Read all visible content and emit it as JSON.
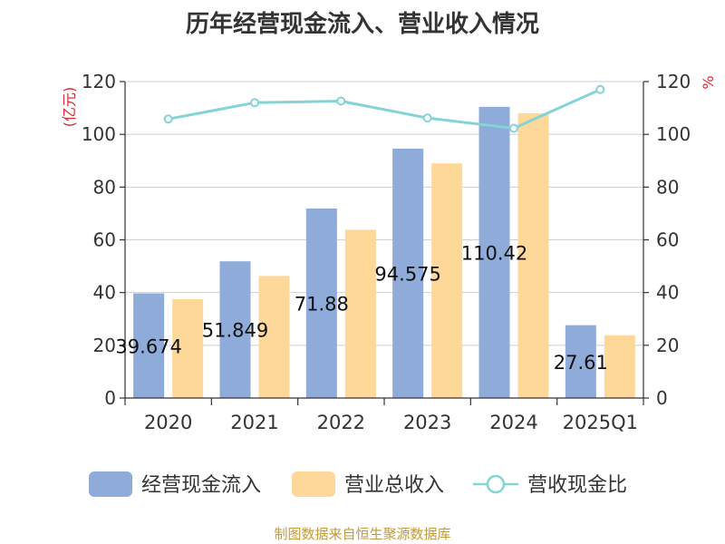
{
  "chart_data": {
    "type": "bar",
    "title": "历年经营现金流入、营业收入情况",
    "categories": [
      "2020",
      "2021",
      "2022",
      "2023",
      "2024",
      "2025Q1"
    ],
    "series": [
      {
        "name": "经营现金流入",
        "kind": "bar",
        "axis": "left",
        "color": "#8eabd9",
        "values": [
          39.674,
          51.849,
          71.88,
          94.575,
          110.42,
          27.61
        ],
        "labels": [
          "39.674",
          "51.849",
          "71.88",
          "94.575",
          "110.42",
          "27.61"
        ]
      },
      {
        "name": "营业总收入",
        "kind": "bar",
        "axis": "left",
        "color": "#fed899",
        "values": [
          37.5,
          46.3,
          63.8,
          89.0,
          108.0,
          23.8
        ]
      },
      {
        "name": "营收现金比",
        "kind": "line",
        "axis": "right",
        "color": "#84d3d5",
        "values": [
          105.8,
          112.0,
          112.6,
          106.2,
          102.3,
          117.0
        ]
      }
    ],
    "left_axis": {
      "label": "(亿元)",
      "ylim": [
        0,
        120
      ],
      "ticks": [
        0,
        20,
        40,
        60,
        80,
        100,
        120
      ]
    },
    "right_axis": {
      "label": "%",
      "ylim": [
        0,
        120
      ],
      "ticks": [
        0,
        20,
        40,
        60,
        80,
        100,
        120
      ]
    },
    "grid": true,
    "legend_position": "bottom"
  },
  "footer": "制图数据来自恒生聚源数据库"
}
